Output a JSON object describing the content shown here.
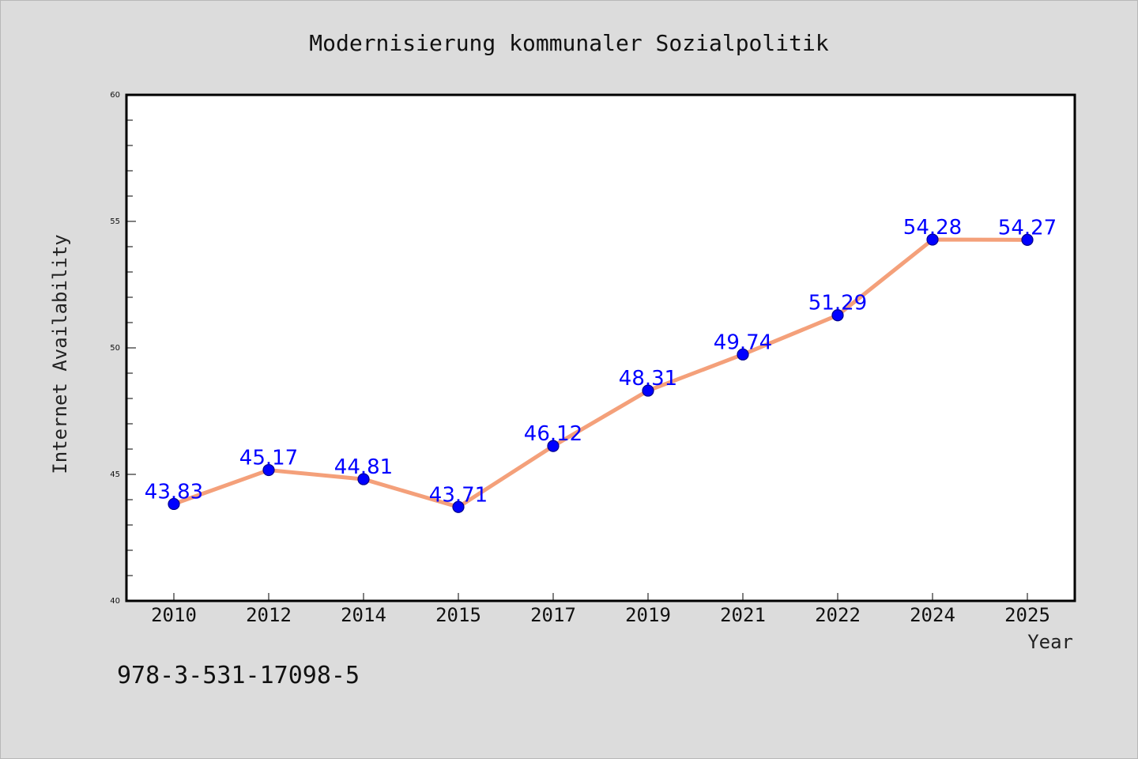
{
  "chart_data": {
    "type": "line",
    "title": "Modernisierung kommunaler Sozialpolitik",
    "xlabel": "Year",
    "ylabel": "Internet Availability",
    "categories": [
      "2010",
      "2012",
      "2014",
      "2015",
      "2017",
      "2019",
      "2021",
      "2022",
      "2024",
      "2025"
    ],
    "series": [
      {
        "values": [
          43.83,
          45.17,
          44.81,
          43.71,
          46.12,
          48.31,
          49.74,
          51.29,
          54.28,
          54.27
        ]
      }
    ],
    "data_labels": [
      "43.83",
      "45.17",
      "44.81",
      "43.71",
      "46.12",
      "48.31",
      "49.74",
      "51.29",
      "54.28",
      "54.27"
    ],
    "ylim": [
      40,
      60
    ],
    "y_ticks": [
      40,
      45,
      50,
      55,
      60
    ],
    "y_minor_step": 1,
    "grid": false,
    "legend": "none",
    "colors": {
      "line": "#f4a07a",
      "marker": "#0000ff",
      "data_label": "#0000ff",
      "page_background": "#dcdcdc",
      "plot_background": "#ffffff"
    },
    "footer_text": "978-3-531-17098-5"
  }
}
